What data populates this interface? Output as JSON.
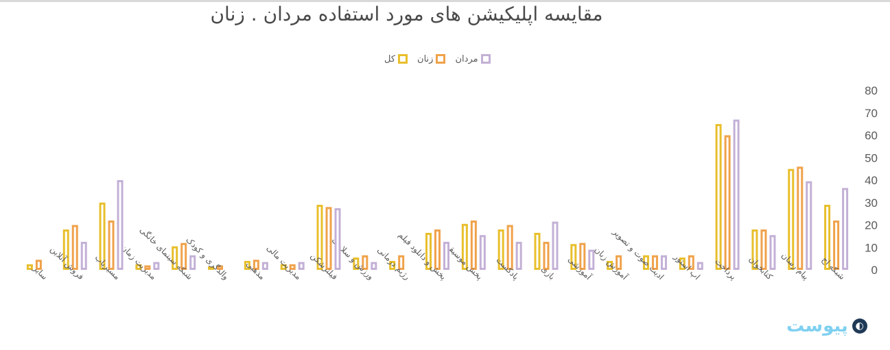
{
  "chart_data": {
    "type": "bar",
    "title": "مقایسه اپلیکیشن های مورد استفاده مردان . زنان",
    "legend_position": "top",
    "ylim": [
      0,
      80
    ],
    "yticks": [
      0,
      10,
      20,
      30,
      40,
      50,
      60,
      70,
      80
    ],
    "grid": false,
    "categories": [
      "شبکه اج",
      "پیام رسان",
      "کتابخوان",
      "پرداخت",
      "اپ استور",
      "ادیت صوت و تصویر",
      "آموزش زبان",
      "آموزشی",
      "بازی",
      "پادکست",
      "پخش موسیقی",
      "پخش و دانلود فیلم",
      "رژیم درمانی",
      "ورزش و سلامت",
      "فیلترشکن",
      "مدیریت مالی",
      "مذهبی",
      "والدگری و کودک",
      "شبکه سینمای خانگی",
      "مدیریت زمان",
      "مسیریاب",
      "فروش آنلاین",
      "سایر"
    ],
    "series": [
      {
        "name": "کل",
        "color": "#e8bf2c",
        "values": [
          29,
          45,
          18,
          65,
          5.5,
          6.5,
          4,
          11.5,
          16.5,
          18,
          20.5,
          16.5,
          4,
          5.5,
          29,
          2.5,
          4,
          1.5,
          10.5,
          2.5,
          30,
          18,
          2.5
        ]
      },
      {
        "name": "زنان",
        "color": "#f0a24a",
        "values": [
          22,
          46,
          18,
          60,
          6.5,
          6.5,
          6.5,
          12,
          12.5,
          20,
          22,
          18,
          6.5,
          6.5,
          28,
          2.5,
          4.5,
          2,
          12,
          2,
          22,
          20,
          4.5
        ]
      },
      {
        "name": "مردان",
        "color": "#c3b0d6",
        "values": [
          36.5,
          39.5,
          15.5,
          67,
          3.5,
          6.5,
          0,
          9,
          21.5,
          12.5,
          15.5,
          12.5,
          0,
          3.5,
          27.5,
          3.5,
          3.5,
          0,
          6.5,
          3.5,
          40,
          12.5,
          0
        ]
      }
    ]
  },
  "watermark": {
    "text": "پیوست",
    "icon": "logo-icon"
  }
}
